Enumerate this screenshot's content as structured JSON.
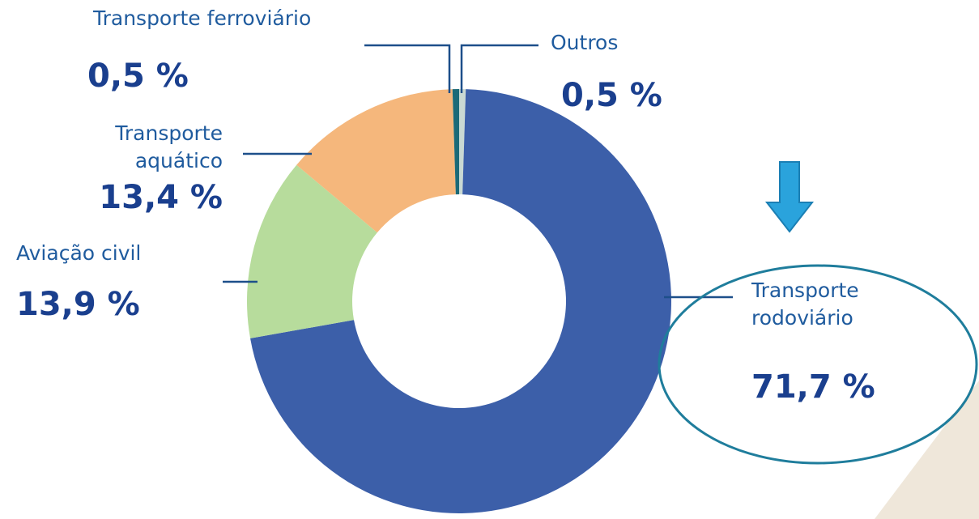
{
  "chart_data": {
    "type": "donut",
    "categories": [
      "Outros",
      "Transporte rodoviário",
      "Aviação civil",
      "Transporte aquático",
      "Transporte ferroviário"
    ],
    "values": [
      0.5,
      71.7,
      13.9,
      13.4,
      0.5
    ],
    "value_labels": [
      "0,5 %",
      "71,7 %",
      "13,9 %",
      "13,4 %",
      "0,5 %"
    ],
    "colors": [
      "#c9d9d3",
      "#3c5fa9",
      "#b7dc9c",
      "#f5b77c",
      "#1b6a78"
    ]
  }
}
